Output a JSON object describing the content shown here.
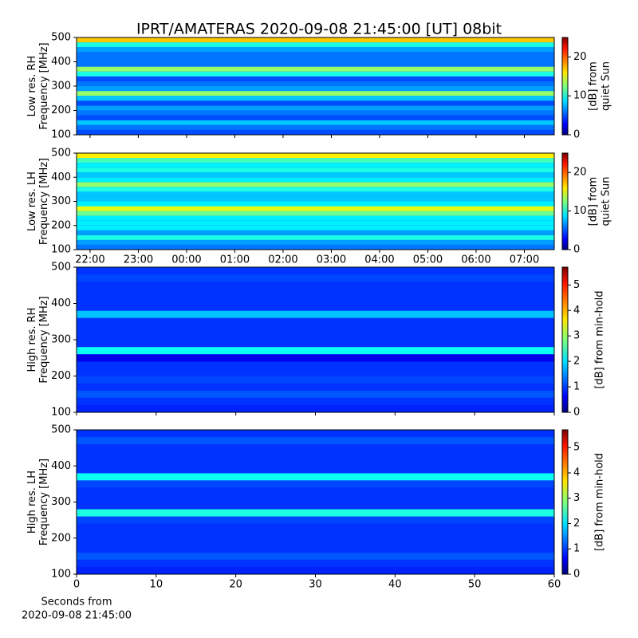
{
  "chart_data": [
    {
      "type": "heatmap",
      "title": "IPRT/AMATERAS 2020-09-08 21:45:00 [UT]   08bit",
      "ylabel": [
        "Low res. RH",
        "Frequency [MHz]"
      ],
      "ylim": [
        100,
        500
      ],
      "yticks": [
        100,
        200,
        300,
        400,
        500
      ],
      "xlim": [
        21.72,
        31.62
      ],
      "colormap": "jet",
      "rows": [
        110,
        130,
        150,
        170,
        190,
        210,
        230,
        250,
        270,
        290,
        310,
        330,
        350,
        370,
        390,
        410,
        430,
        450,
        470,
        490
      ],
      "z": [
        5,
        6,
        8,
        5,
        6,
        7,
        5,
        8,
        13,
        7,
        6,
        5,
        10,
        13,
        6,
        6,
        6,
        7,
        10,
        17
      ],
      "colorbar_label": [
        "[dB] from",
        "quiet Sun"
      ],
      "clim": [
        0,
        25
      ],
      "cticks": [
        0,
        10,
        20
      ]
    },
    {
      "type": "heatmap",
      "ylabel": [
        "Low res. LH",
        "Frequency [MHz]"
      ],
      "ylim": [
        100,
        500
      ],
      "yticks": [
        100,
        200,
        300,
        400,
        500
      ],
      "xlim": [
        21.72,
        31.62
      ],
      "xticks": [
        {
          "value": 22,
          "label": "22:00"
        },
        {
          "value": 23,
          "label": "23:00"
        },
        {
          "value": 24,
          "label": "00:00"
        },
        {
          "value": 25,
          "label": "01:00"
        },
        {
          "value": 26,
          "label": "02:00"
        },
        {
          "value": 27,
          "label": "03:00"
        },
        {
          "value": 28,
          "label": "04:00"
        },
        {
          "value": 29,
          "label": "05:00"
        },
        {
          "value": 30,
          "label": "06:00"
        },
        {
          "value": 31,
          "label": "07:00"
        }
      ],
      "colormap": "jet",
      "rows": [
        110,
        130,
        150,
        170,
        190,
        210,
        230,
        250,
        270,
        290,
        310,
        330,
        350,
        370,
        390,
        410,
        430,
        450,
        470,
        490
      ],
      "z": [
        6,
        7,
        10,
        7,
        9,
        9,
        9,
        12,
        15,
        9,
        8,
        8,
        10,
        13,
        9,
        8,
        10,
        9,
        11,
        16
      ],
      "colorbar_label": [
        "[dB] from",
        "quiet Sun"
      ],
      "clim": [
        0,
        25
      ],
      "cticks": [
        0,
        10,
        20
      ]
    },
    {
      "type": "heatmap",
      "ylabel": [
        "High res. RH",
        "Frequency [MHz]"
      ],
      "ylim": [
        100,
        500
      ],
      "yticks": [
        100,
        200,
        300,
        400,
        500
      ],
      "xlim": [
        0,
        60
      ],
      "colormap": "jet",
      "rows": [
        110,
        130,
        150,
        170,
        190,
        210,
        230,
        250,
        270,
        290,
        310,
        330,
        350,
        370,
        390,
        410,
        430,
        450,
        470,
        490
      ],
      "z": [
        0.9,
        1,
        1.2,
        1,
        1.1,
        1,
        1,
        0.6,
        2.2,
        1,
        1,
        1,
        1,
        1.8,
        1,
        1,
        1,
        1,
        1.1,
        1
      ],
      "colorbar_label": [
        "[dB] from min-hold"
      ],
      "clim": [
        0,
        5.7
      ],
      "cticks": [
        0,
        1,
        2,
        3,
        4,
        5
      ]
    },
    {
      "type": "heatmap",
      "ylabel": [
        "High res. LH",
        "Frequency [MHz]"
      ],
      "ylim": [
        100,
        500
      ],
      "yticks": [
        100,
        200,
        300,
        400,
        500
      ],
      "xlim": [
        0,
        60
      ],
      "xticks": [
        0,
        10,
        20,
        30,
        40,
        50,
        60
      ],
      "xlabel": [
        "Seconds from",
        "2020-09-08 21:45:00"
      ],
      "colormap": "jet",
      "rows": [
        110,
        130,
        150,
        170,
        190,
        210,
        230,
        250,
        270,
        290,
        310,
        330,
        350,
        370,
        390,
        410,
        430,
        450,
        470,
        490
      ],
      "z": [
        0.9,
        1,
        1.2,
        1,
        1,
        1,
        1,
        1.1,
        2.3,
        1,
        1,
        1,
        1.1,
        2.2,
        1,
        1,
        1,
        1,
        1.2,
        1
      ],
      "colorbar_label": [
        "[dB] from min-hold"
      ],
      "clim": [
        0,
        5.7
      ],
      "cticks": [
        0,
        1,
        2,
        3,
        4,
        5
      ]
    }
  ]
}
